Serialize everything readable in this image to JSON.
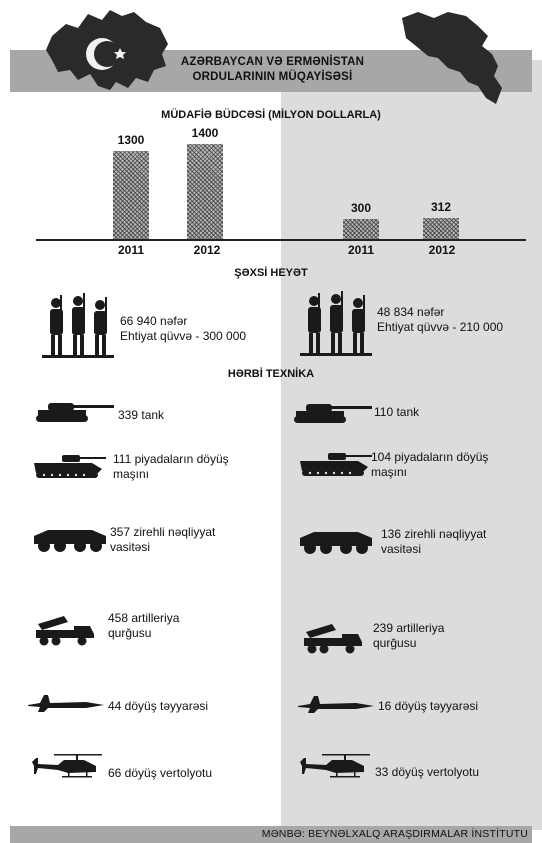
{
  "title": {
    "line1": "AZƏRBAYCAN VƏ ERMƏNİSTAN",
    "line2": "ORDULARININ MÜQAYİSƏSİ"
  },
  "budget": {
    "heading": "MÜDAFİƏ BÜDCƏSİ (MİLYON DOLLARLA)",
    "unit": "milyon dollar",
    "azerbaijan": [
      {
        "year": "2011",
        "value": 1300
      },
      {
        "year": "2012",
        "value": 1400
      }
    ],
    "armenia": [
      {
        "year": "2011",
        "value": 300
      },
      {
        "year": "2012",
        "value": 312
      }
    ],
    "labels": {
      "az_2011": "1300",
      "az_2012": "1400",
      "am_2011": "300",
      "am_2012": "312"
    }
  },
  "chart_data": {
    "type": "bar",
    "title": "MÜDAFİƏ BÜDCƏSİ (MİLYON DOLLARLA)",
    "categories": [
      "2011",
      "2012",
      "2011",
      "2012"
    ],
    "values": [
      1300,
      1400,
      300,
      312
    ]
  },
  "personnel": {
    "heading": "ŞƏXSİ HEYƏT",
    "az_line1": "66 940 nəfər",
    "az_line2": "Ehtiyat qüvvə - 300 000",
    "am_line1": "48 834 nəfər",
    "am_line2": "Ehtiyat qüvvə - 210 000"
  },
  "equipment": {
    "heading": "HƏRBİ TEXNİKA",
    "az": {
      "tank": "339 tank",
      "ifv_1": "111 piyadaların döyüş",
      "ifv_2": "maşını",
      "apc_1": "357 zirehli nəqliyyat",
      "apc_2": "vasitəsi",
      "art_1": "458 artilleriya",
      "art_2": "qurğusu",
      "jet": "44 döyüş təyyarəsi",
      "heli": "66 döyüş vertolyotu"
    },
    "am": {
      "tank": "110 tank",
      "ifv_1": "104 piyadaların döyüş",
      "ifv_2": "maşını",
      "apc_1": "136 zirehli nəqliyyat",
      "apc_2": "vasitəsi",
      "art_1": "239 artilleriya",
      "art_2": "qurğusu",
      "jet": "16 döyüş təyyarəsi",
      "heli": "33 döyüş vertolyotu"
    }
  },
  "icons": [
    "azerbaijan-map-icon",
    "armenia-map-icon",
    "soldiers-icon",
    "tank-icon",
    "ifv-icon",
    "apc-icon",
    "rocket-launcher-icon",
    "fighter-jet-icon",
    "helicopter-icon"
  ],
  "colors": {
    "band": "#a7a7a7",
    "right_panel": "#dcdcdc",
    "flag_blue": "#3a3a3a"
  },
  "source": "MƏNBƏ: BEYNƏLXALQ ARAŞDIRMALAR İNSTİTUTU"
}
